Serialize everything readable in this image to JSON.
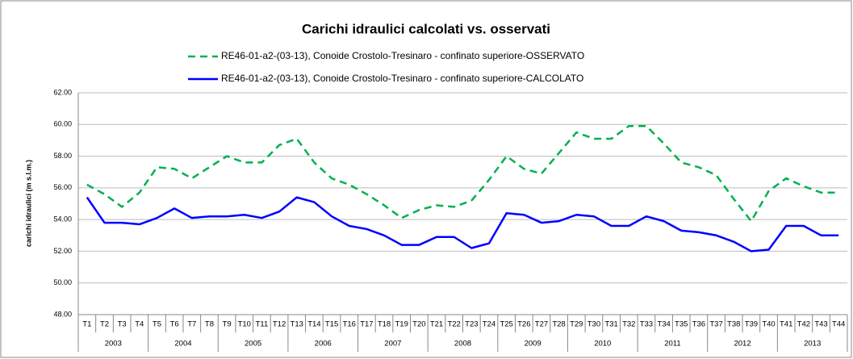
{
  "chart_data": {
    "type": "line",
    "title": "Carichi idraulici calcolati vs. osservati",
    "y_label": "carichi idraulici (m s.l.m.)",
    "categories": [
      "T1",
      "T2",
      "T3",
      "T4",
      "T5",
      "T6",
      "T7",
      "T8",
      "T9",
      "T10",
      "T11",
      "T12",
      "T13",
      "T14",
      "T15",
      "T16",
      "T17",
      "T18",
      "T19",
      "T20",
      "T21",
      "T22",
      "T23",
      "T24",
      "T25",
      "T26",
      "T27",
      "T28",
      "T29",
      "T30",
      "T31",
      "T32",
      "T33",
      "T34",
      "T35",
      "T36",
      "T37",
      "T38",
      "T39",
      "T40",
      "T41",
      "T42",
      "T43",
      "T44"
    ],
    "groups": [
      "2003",
      "2004",
      "2005",
      "2006",
      "2007",
      "2008",
      "2009",
      "2010",
      "2011",
      "2012",
      "2013"
    ],
    "series": [
      {
        "name": "RE46-01-a2-(03-13), Conoide Crostolo-Tresinaro - confinato superiore-OSSERVATO",
        "color": "#00b050",
        "dashed": true,
        "values": [
          56.2,
          55.6,
          54.8,
          55.7,
          57.3,
          57.2,
          56.6,
          57.3,
          58.0,
          57.6,
          57.6,
          58.7,
          59.1,
          57.6,
          56.6,
          56.2,
          55.6,
          54.9,
          54.1,
          54.6,
          54.9,
          54.8,
          55.2,
          56.5,
          58.0,
          57.2,
          56.9,
          58.2,
          59.5,
          59.1,
          59.1,
          59.9,
          59.9,
          58.8,
          57.6,
          57.3,
          56.8,
          55.3,
          53.9,
          55.8,
          56.6,
          56.1,
          55.7,
          55.7
        ]
      },
      {
        "name": "RE46-01-a2-(03-13), Conoide Crostolo-Tresinaro - confinato superiore-CALCOLATO",
        "color": "#0000ff",
        "dashed": false,
        "values": [
          55.4,
          53.8,
          53.8,
          53.7,
          54.1,
          54.7,
          54.1,
          54.2,
          54.2,
          54.3,
          54.1,
          54.5,
          55.4,
          55.1,
          54.2,
          53.6,
          53.4,
          53.0,
          52.4,
          52.4,
          52.9,
          52.9,
          52.2,
          52.5,
          54.4,
          54.3,
          53.8,
          53.9,
          54.3,
          54.2,
          53.6,
          53.6,
          54.2,
          53.9,
          53.3,
          53.2,
          53.0,
          52.6,
          52.0,
          52.1,
          53.6,
          53.6,
          53.0,
          53.0
        ]
      }
    ],
    "ylim": [
      48,
      62
    ],
    "yticks": [
      {
        "value": 48,
        "label": "48.00"
      },
      {
        "value": 50,
        "label": "50.00"
      },
      {
        "value": 52,
        "label": "52.00"
      },
      {
        "value": 54,
        "label": "54.00"
      },
      {
        "value": 56,
        "label": "56.00"
      },
      {
        "value": 58,
        "label": "58.00"
      },
      {
        "value": 60,
        "label": "60.00"
      },
      {
        "value": 62,
        "label": "62.00"
      }
    ],
    "grid": true
  }
}
